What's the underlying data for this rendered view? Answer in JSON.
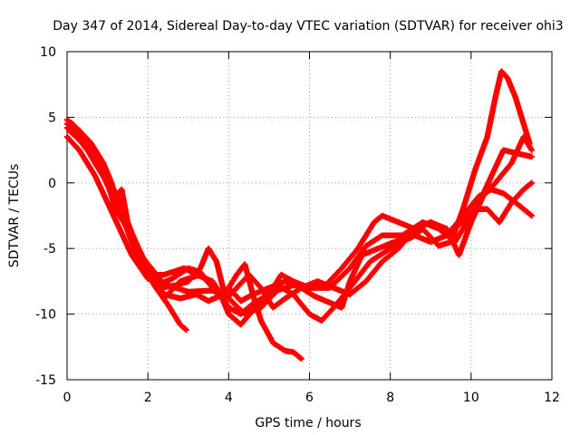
{
  "chart_data": {
    "type": "scatter",
    "title": "Day 347 of 2014, Sidereal Day-to-day VTEC variation (SDTVAR) for receiver ohi3",
    "xlabel": "GPS time / hours",
    "ylabel": "SDTVAR / TECUs",
    "xlim": [
      0,
      12
    ],
    "ylim": [
      -15,
      10
    ],
    "xticks": [
      0,
      2,
      4,
      6,
      8,
      10,
      12
    ],
    "yticks": [
      -15,
      -10,
      -5,
      0,
      5,
      10
    ],
    "xtick_labels": [
      "0",
      "2",
      "4",
      "6",
      "8",
      "10",
      "12"
    ],
    "ytick_labels": [
      "-15",
      "-10",
      "-5",
      "0",
      "5",
      "10"
    ],
    "grid": true,
    "marker": "+",
    "series": [
      {
        "name": "track-1",
        "color": "#ff0000",
        "points": [
          [
            0.0,
            4.5
          ],
          [
            0.3,
            3.8
          ],
          [
            0.6,
            2.0
          ],
          [
            0.9,
            0.5
          ],
          [
            1.2,
            -1.5
          ],
          [
            1.5,
            -3.6
          ],
          [
            1.8,
            -5.6
          ],
          [
            2.0,
            -7.0
          ],
          [
            2.2,
            -8.0
          ],
          [
            2.5,
            -9.3
          ],
          [
            2.8,
            -10.8
          ],
          [
            2.95,
            -11.2
          ]
        ]
      },
      {
        "name": "track-2",
        "color": "#ff0000",
        "points": [
          [
            0.05,
            4.0
          ],
          [
            0.4,
            3.0
          ],
          [
            0.8,
            1.5
          ],
          [
            1.1,
            -0.5
          ],
          [
            1.45,
            -3.0
          ],
          [
            1.8,
            -5.2
          ],
          [
            2.1,
            -7.2
          ],
          [
            2.4,
            -8.8
          ],
          [
            2.8,
            -7.5
          ],
          [
            3.3,
            -7.0
          ],
          [
            3.8,
            -8.5
          ],
          [
            4.0,
            -10.0
          ],
          [
            4.3,
            -10.8
          ],
          [
            4.8,
            -9.0
          ],
          [
            5.2,
            -7.8
          ],
          [
            5.6,
            -8.5
          ],
          [
            6.0,
            -10.0
          ],
          [
            6.3,
            -10.5
          ],
          [
            6.6,
            -9.5
          ],
          [
            7.0,
            -8.0
          ],
          [
            7.5,
            -6.0
          ],
          [
            8.0,
            -5.0
          ],
          [
            8.6,
            -4.0
          ],
          [
            9.0,
            -4.5
          ],
          [
            9.4,
            -4.0
          ],
          [
            9.8,
            -2.5
          ],
          [
            10.2,
            -1.0
          ],
          [
            10.5,
            -0.5
          ],
          [
            10.8,
            -0.8
          ],
          [
            11.1,
            -1.5
          ],
          [
            11.5,
            -2.5
          ]
        ]
      },
      {
        "name": "track-3",
        "color": "#ff0000",
        "points": [
          [
            0.0,
            3.5
          ],
          [
            0.3,
            2.5
          ],
          [
            0.7,
            0.5
          ],
          [
            1.0,
            -1.5
          ],
          [
            1.3,
            -3.5
          ],
          [
            1.6,
            -5.5
          ],
          [
            2.0,
            -7.3
          ],
          [
            2.3,
            -7.7
          ],
          [
            2.6,
            -7.3
          ],
          [
            3.0,
            -6.5
          ],
          [
            3.3,
            -6.8
          ],
          [
            3.6,
            -8.0
          ],
          [
            3.9,
            -9.0
          ],
          [
            4.2,
            -8.0
          ],
          [
            4.5,
            -7.0
          ],
          [
            4.8,
            -8.0
          ],
          [
            5.1,
            -9.5
          ],
          [
            5.4,
            -8.8
          ],
          [
            5.8,
            -8.0
          ],
          [
            6.2,
            -7.5
          ],
          [
            6.6,
            -8.0
          ],
          [
            7.0,
            -8.5
          ],
          [
            7.4,
            -7.5
          ],
          [
            7.8,
            -6.0
          ],
          [
            8.2,
            -5.0
          ],
          [
            8.6,
            -3.5
          ],
          [
            9.0,
            -3.0
          ],
          [
            9.4,
            -3.8
          ],
          [
            9.8,
            -3.0
          ],
          [
            10.1,
            -2.0
          ],
          [
            10.4,
            -2.0
          ],
          [
            10.7,
            -3.0
          ],
          [
            11.0,
            -1.5
          ],
          [
            11.3,
            -0.5
          ],
          [
            11.5,
            0.0
          ]
        ]
      },
      {
        "name": "track-4",
        "color": "#ff0000",
        "points": [
          [
            0.1,
            4.6
          ],
          [
            0.45,
            3.4
          ],
          [
            0.8,
            1.8
          ],
          [
            1.2,
            -0.8
          ],
          [
            1.6,
            -3.8
          ],
          [
            2.0,
            -6.6
          ],
          [
            2.4,
            -8.5
          ],
          [
            2.8,
            -8.8
          ],
          [
            3.2,
            -8.5
          ],
          [
            3.5,
            -9.0
          ],
          [
            3.8,
            -8.6
          ],
          [
            4.0,
            -8.0
          ],
          [
            4.3,
            -9.0
          ],
          [
            4.6,
            -8.5
          ],
          [
            5.0,
            -8.0
          ],
          [
            5.4,
            -7.5
          ],
          [
            5.8,
            -8.0
          ],
          [
            6.1,
            -8.6
          ],
          [
            6.4,
            -9.0
          ],
          [
            6.8,
            -9.5
          ],
          [
            7.0,
            -7.5
          ],
          [
            7.3,
            -5.5
          ],
          [
            7.7,
            -5.0
          ],
          [
            8.1,
            -4.5
          ],
          [
            8.5,
            -4.2
          ],
          [
            8.8,
            -3.5
          ],
          [
            9.2,
            -4.8
          ],
          [
            9.5,
            -4.5
          ],
          [
            9.8,
            -2.0
          ],
          [
            10.1,
            1.0
          ],
          [
            10.4,
            3.5
          ],
          [
            10.6,
            6.5
          ],
          [
            10.75,
            8.5
          ],
          [
            10.9,
            8.0
          ],
          [
            11.1,
            6.5
          ],
          [
            11.3,
            4.5
          ],
          [
            11.45,
            3.0
          ]
        ]
      },
      {
        "name": "track-5",
        "color": "#ff0000",
        "points": [
          [
            0.0,
            4.2
          ],
          [
            0.25,
            3.8
          ],
          [
            0.45,
            3.0
          ],
          [
            0.7,
            1.5
          ],
          [
            1.0,
            0.0
          ],
          [
            1.3,
            -2.0
          ],
          [
            1.6,
            -4.5
          ],
          [
            1.9,
            -6.8
          ],
          [
            2.3,
            -8.0
          ],
          [
            2.7,
            -7.8
          ],
          [
            3.0,
            -7.5
          ],
          [
            3.3,
            -6.5
          ],
          [
            3.5,
            -5.0
          ],
          [
            3.7,
            -6.0
          ],
          [
            3.9,
            -8.5
          ],
          [
            4.2,
            -7.0
          ],
          [
            4.4,
            -6.2
          ],
          [
            4.6,
            -8.5
          ],
          [
            4.8,
            -10.5
          ],
          [
            5.1,
            -12.2
          ],
          [
            5.4,
            -12.8
          ],
          [
            5.6,
            -12.9
          ],
          [
            5.8,
            -13.4
          ]
        ]
      },
      {
        "name": "track-6",
        "color": "#ff0000",
        "points": [
          [
            0.0,
            4.8
          ],
          [
            0.3,
            4.0
          ],
          [
            0.6,
            3.0
          ],
          [
            0.9,
            1.5
          ],
          [
            1.1,
            0.0
          ],
          [
            1.2,
            -1.0
          ],
          [
            1.35,
            -0.5
          ],
          [
            1.5,
            -3.0
          ],
          [
            1.8,
            -5.5
          ],
          [
            2.0,
            -7.0
          ],
          [
            2.4,
            -7.0
          ],
          [
            2.9,
            -6.5
          ],
          [
            3.2,
            -7.0
          ],
          [
            3.6,
            -7.5
          ],
          [
            4.0,
            -9.5
          ],
          [
            4.3,
            -10.0
          ],
          [
            4.6,
            -9.2
          ],
          [
            5.0,
            -8.5
          ],
          [
            5.3,
            -7.0
          ],
          [
            5.6,
            -7.5
          ],
          [
            6.0,
            -8.0
          ],
          [
            6.5,
            -8.0
          ],
          [
            7.0,
            -6.5
          ],
          [
            7.4,
            -4.8
          ],
          [
            7.8,
            -4.0
          ],
          [
            8.3,
            -4.0
          ],
          [
            8.8,
            -3.0
          ],
          [
            9.2,
            -3.5
          ],
          [
            9.6,
            -4.5
          ],
          [
            9.9,
            -3.0
          ],
          [
            10.2,
            -1.5
          ],
          [
            10.5,
            0.5
          ],
          [
            10.8,
            2.5
          ],
          [
            11.2,
            2.2
          ],
          [
            11.5,
            2.0
          ]
        ]
      },
      {
        "name": "track-7",
        "color": "#ff0000",
        "points": [
          [
            0.05,
            4.3
          ],
          [
            0.5,
            2.5
          ],
          [
            0.9,
            1.0
          ],
          [
            1.2,
            -2.0
          ],
          [
            1.6,
            -4.0
          ],
          [
            1.9,
            -5.8
          ],
          [
            2.4,
            -7.7
          ],
          [
            3.0,
            -8.3
          ],
          [
            3.6,
            -8.2
          ],
          [
            4.0,
            -8.8
          ],
          [
            4.4,
            -10.0
          ],
          [
            4.8,
            -9.5
          ],
          [
            5.2,
            -8.2
          ],
          [
            5.6,
            -7.8
          ],
          [
            6.0,
            -7.9
          ],
          [
            6.4,
            -7.8
          ],
          [
            6.8,
            -6.5
          ],
          [
            7.2,
            -5.0
          ],
          [
            7.6,
            -3.0
          ],
          [
            7.8,
            -2.5
          ],
          [
            8.2,
            -3.0
          ],
          [
            8.6,
            -3.5
          ],
          [
            9.0,
            -3.0
          ],
          [
            9.4,
            -3.5
          ],
          [
            9.7,
            -5.5
          ],
          [
            10.0,
            -3.0
          ],
          [
            10.3,
            -1.0
          ],
          [
            10.6,
            0.0
          ],
          [
            11.0,
            1.5
          ],
          [
            11.3,
            3.5
          ],
          [
            11.5,
            2.5
          ]
        ]
      }
    ]
  }
}
